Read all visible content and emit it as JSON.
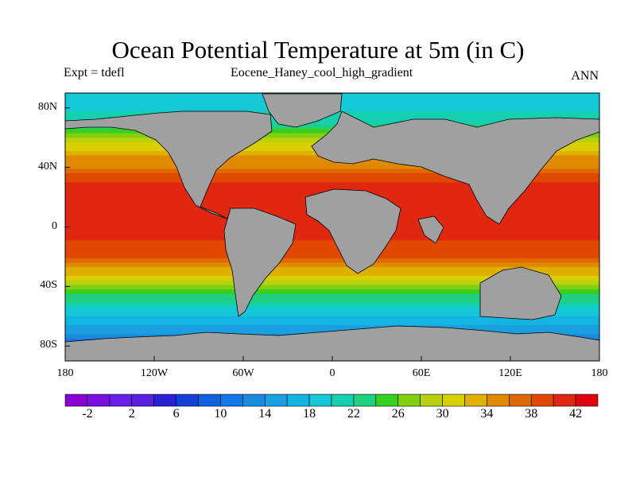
{
  "header": {
    "title": "Ocean Potential Temperature at 5m (in C)",
    "left_subtitle": "Expt = tdefl",
    "center_subtitle": "Eocene_Haney_cool_high_gradient",
    "right_subtitle": "ANN"
  },
  "map": {
    "projection": "cylindrical-equidistant",
    "lon_range": [
      -180,
      180
    ],
    "lat_range": [
      -90,
      90
    ],
    "land_color": "#a0a0a0",
    "x_ticks": [
      {
        "lon": -180,
        "label": "180"
      },
      {
        "lon": -120,
        "label": "120W"
      },
      {
        "lon": -60,
        "label": "60W"
      },
      {
        "lon": 0,
        "label": "0"
      },
      {
        "lon": 60,
        "label": "60E"
      },
      {
        "lon": 120,
        "label": "120E"
      },
      {
        "lon": 180,
        "label": "180"
      }
    ],
    "y_ticks": [
      {
        "lat": 80,
        "label": "80N"
      },
      {
        "lat": 40,
        "label": "40N"
      },
      {
        "lat": 0,
        "label": "0"
      },
      {
        "lat": -40,
        "label": "40S"
      },
      {
        "lat": -80,
        "label": "80S"
      }
    ]
  },
  "colorbar": {
    "min": -4,
    "max": 44,
    "step": 2,
    "labels": [
      "-2",
      "2",
      "6",
      "10",
      "14",
      "18",
      "22",
      "26",
      "30",
      "34",
      "38",
      "42"
    ],
    "colors": [
      "#8a00d4",
      "#7a10e0",
      "#6a1fe8",
      "#5a20e0",
      "#2a20d8",
      "#1040d8",
      "#1060e0",
      "#1478e8",
      "#1a8ce0",
      "#1aa0e0",
      "#14b4e0",
      "#14c8d8",
      "#14d0b0",
      "#20d080",
      "#38d020",
      "#80d010",
      "#b8d010",
      "#d8d000",
      "#e0b000",
      "#e08a00",
      "#e06800",
      "#e04800",
      "#e02810",
      "#e00010"
    ]
  },
  "chart_data": {
    "type": "heatmap",
    "title": "Ocean Potential Temperature at 5m (in C)",
    "variable": "Ocean Potential Temperature at 5m",
    "units": "C",
    "xlim": [
      -180,
      180
    ],
    "ylim": [
      -90,
      90
    ],
    "zlim": [
      -4,
      44
    ],
    "zonal_profile_approx": [
      {
        "lat": 85,
        "temp": 18
      },
      {
        "lat": 70,
        "temp": 22
      },
      {
        "lat": 60,
        "temp": 28
      },
      {
        "lat": 50,
        "temp": 33
      },
      {
        "lat": 40,
        "temp": 36
      },
      {
        "lat": 30,
        "temp": 40
      },
      {
        "lat": 20,
        "temp": 41
      },
      {
        "lat": 10,
        "temp": 41
      },
      {
        "lat": 0,
        "temp": 41
      },
      {
        "lat": -10,
        "temp": 40
      },
      {
        "lat": -20,
        "temp": 38
      },
      {
        "lat": -30,
        "temp": 33
      },
      {
        "lat": -40,
        "temp": 27
      },
      {
        "lat": -50,
        "temp": 22
      },
      {
        "lat": -60,
        "temp": 18
      },
      {
        "lat": -70,
        "temp": 15
      },
      {
        "lat": -80,
        "temp": 10
      }
    ]
  }
}
